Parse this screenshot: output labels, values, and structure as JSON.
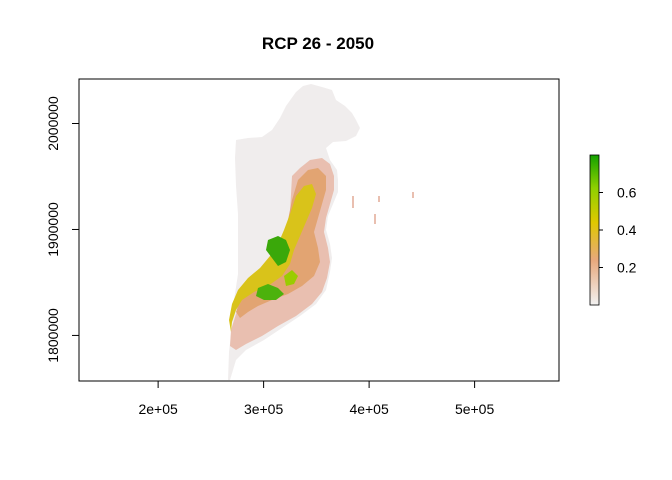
{
  "title": "RCP 26 - 2050",
  "map": {
    "x_ticks": [
      {
        "value": 200000,
        "label": "2e+05"
      },
      {
        "value": 300000,
        "label": "3e+05"
      },
      {
        "value": 400000,
        "label": "4e+05"
      },
      {
        "value": 500000,
        "label": "5e+05"
      }
    ],
    "y_ticks": [
      {
        "value": 1800000,
        "label": "1800000"
      },
      {
        "value": 1900000,
        "label": "1900000"
      },
      {
        "value": 2000000,
        "label": "2000000"
      }
    ],
    "xlim": [
      125000,
      580000
    ],
    "ylim": [
      1757000,
      2042000
    ],
    "background_color": "#f2f2f2"
  },
  "legend": {
    "range": [
      0,
      0.8
    ],
    "ticks": [
      {
        "value": 0.2,
        "label": "0.2"
      },
      {
        "value": 0.4,
        "label": "0.4"
      },
      {
        "value": 0.6,
        "label": "0.6"
      }
    ],
    "colors": {
      "low": "#f2f2f2",
      "mid_low": "#e8a87c",
      "mid": "#dfc800",
      "mid_high": "#8fd000",
      "high": "#13a100"
    }
  }
}
